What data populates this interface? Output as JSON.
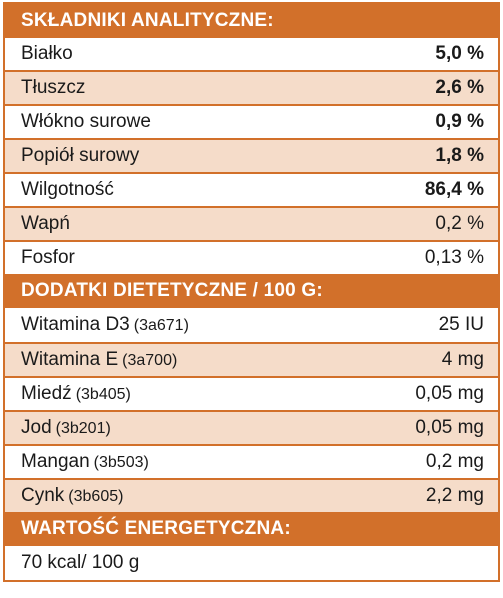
{
  "analytical": {
    "title": "SKŁADNIKI ANALITYCZNE:",
    "rows": [
      {
        "label": "Białko",
        "value": "5,0 %"
      },
      {
        "label": "Tłuszcz",
        "value": "2,6 %"
      },
      {
        "label": "Włókno surowe",
        "value": "0,9 %"
      },
      {
        "label": "Popiół surowy",
        "value": "1,8 %"
      },
      {
        "label": "Wilgotność",
        "value": "86,4 %"
      },
      {
        "label": "Wapń",
        "value": "0,2 %"
      },
      {
        "label": "Fosfor",
        "value": "0,13 %"
      }
    ]
  },
  "additives": {
    "title": "DODATKI DIETETYCZNE / 100 G:",
    "rows": [
      {
        "label": "Witamina D3",
        "code": "(3a671)",
        "value": "25 IU"
      },
      {
        "label": "Witamina E",
        "code": "(3a700)",
        "value": "4 mg"
      },
      {
        "label": "Miedź",
        "code": "(3b405)",
        "value": "0,05 mg"
      },
      {
        "label": "Jod",
        "code": "(3b201)",
        "value": "0,05 mg"
      },
      {
        "label": "Mangan",
        "code": "(3b503)",
        "value": "0,2 mg"
      },
      {
        "label": "Cynk",
        "code": "(3b605)",
        "value": "2,2 mg"
      }
    ]
  },
  "energy": {
    "title": "WARTOŚĆ ENERGETYCZNA:",
    "value": "70 kcal/ 100 g"
  },
  "colors": {
    "accent": "#d2702a",
    "alt_row": "#f5dcc9"
  }
}
